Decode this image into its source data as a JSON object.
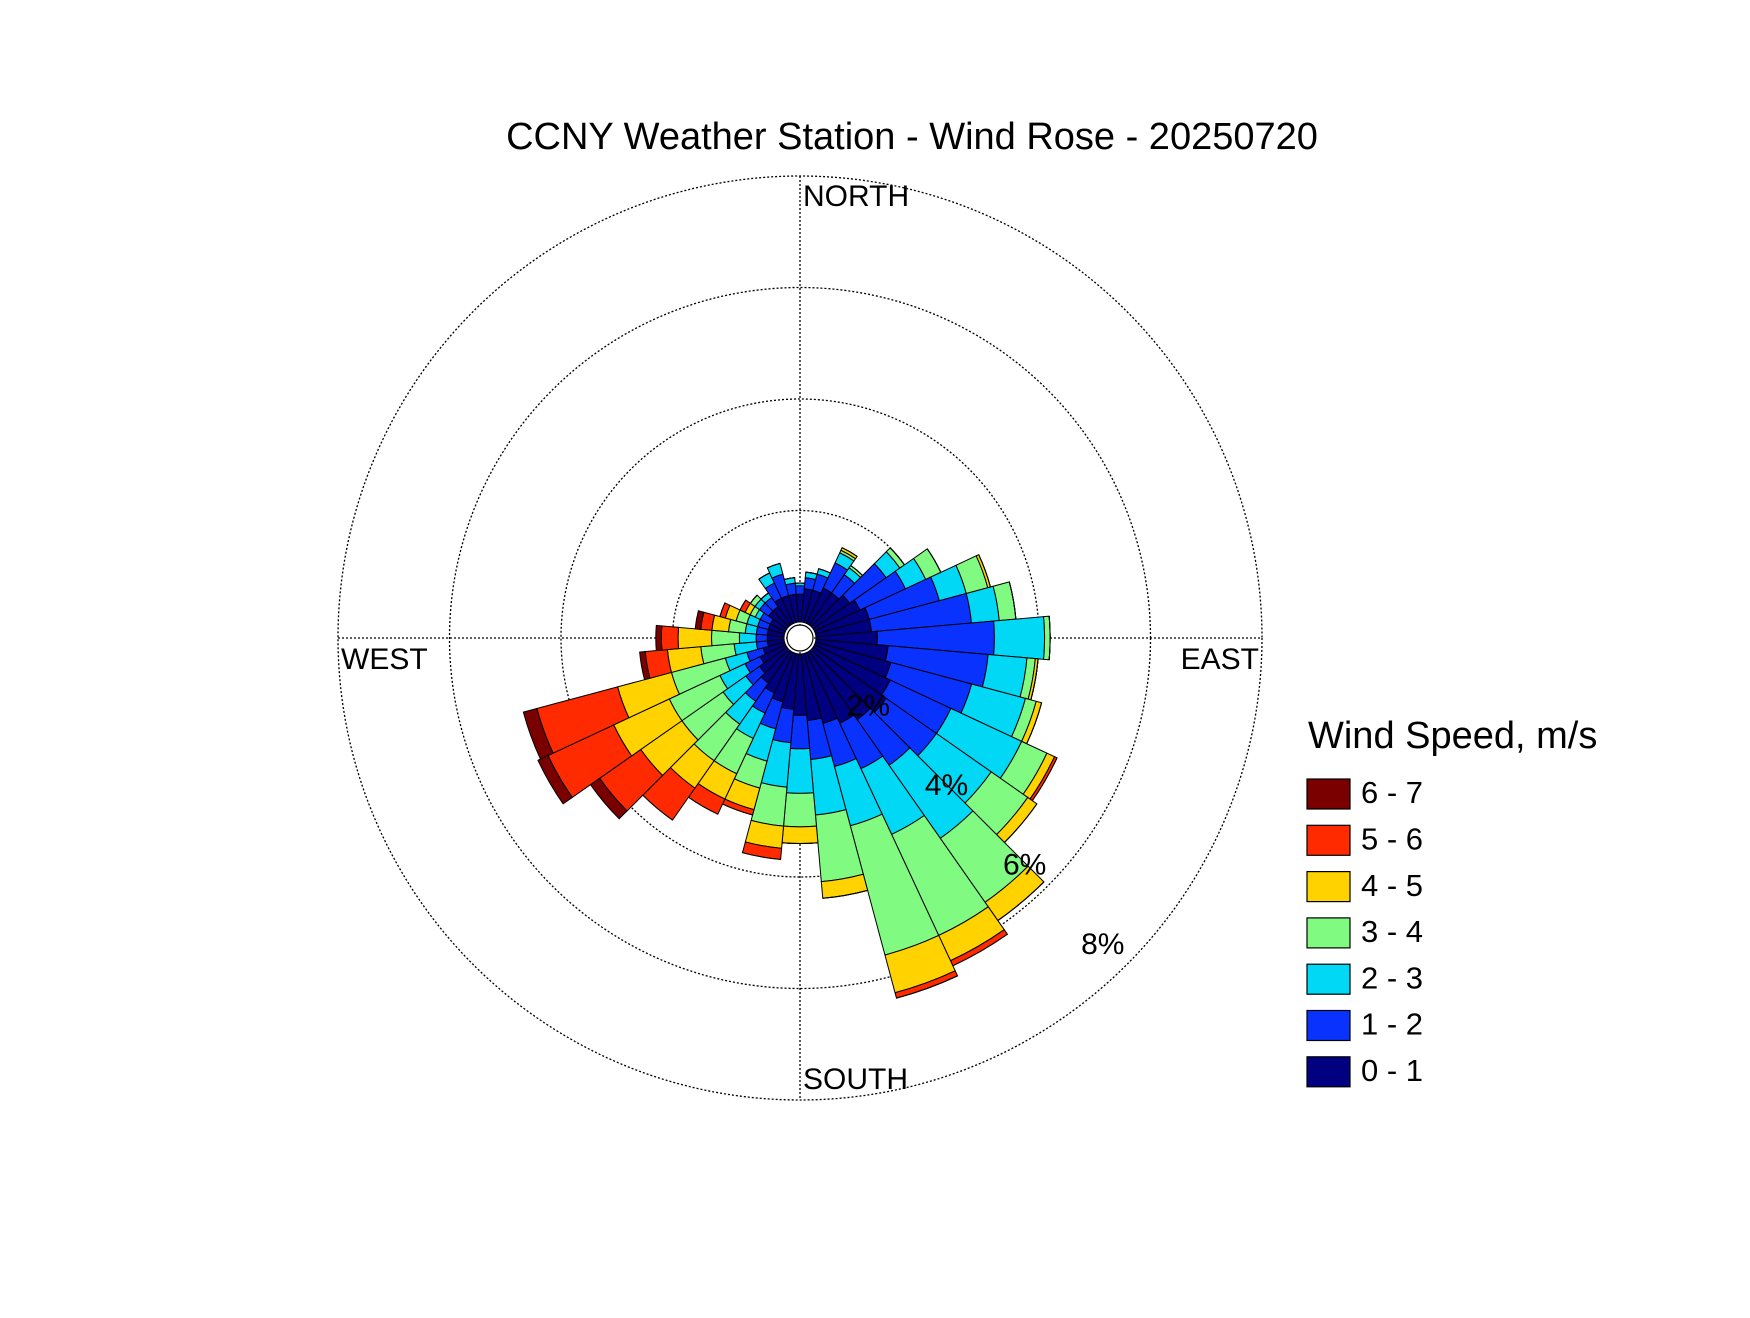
{
  "chart_data": {
    "type": "windrose",
    "title": "CCNY Weather Station - Wind Rose - 20250720",
    "legend_title": "Wind Speed, m/s",
    "direction_labels": [
      "NORTH",
      "EAST",
      "SOUTH",
      "WEST"
    ],
    "directions": [
      0,
      10,
      20,
      30,
      40,
      50,
      60,
      70,
      80,
      90,
      100,
      110,
      120,
      130,
      140,
      150,
      160,
      170,
      180,
      190,
      200,
      210,
      220,
      230,
      240,
      250,
      260,
      270,
      280,
      290,
      300,
      310,
      320,
      330,
      340,
      350
    ],
    "rlim": [
      0,
      8
    ],
    "rticks": [
      {
        "value": 2,
        "label": "2%"
      },
      {
        "value": 4,
        "label": "4%"
      },
      {
        "value": 6,
        "label": "6%"
      },
      {
        "value": 8,
        "label": "8%"
      }
    ],
    "grid": true,
    "series": [
      {
        "name": "0 - 1",
        "color": "#000080",
        "values": [
          0.5,
          0.6,
          0.6,
          0.7,
          0.7,
          0.8,
          0.9,
          1.0,
          1.0,
          1.1,
          1.3,
          1.4,
          1.5,
          1.6,
          1.5,
          1.4,
          1.3,
          1.2,
          1.1,
          1.0,
          0.9,
          0.8,
          0.7,
          0.6,
          0.5,
          0.4,
          0.3,
          0.3,
          0.3,
          0.3,
          0.3,
          0.4,
          0.4,
          0.5,
          0.5,
          0.5
        ]
      },
      {
        "name": "1 - 2",
        "color": "#0a32ff",
        "values": [
          0.15,
          0.2,
          0.3,
          0.5,
          0.4,
          0.8,
          0.9,
          1.3,
          1.8,
          2.1,
          1.8,
          1.5,
          1.2,
          1.1,
          1.0,
          0.9,
          0.8,
          0.7,
          0.6,
          0.6,
          0.5,
          0.4,
          0.4,
          0.3,
          0.3,
          0.3,
          0.2,
          0.2,
          0.2,
          0.2,
          0.2,
          0.2,
          0.2,
          0.3,
          0.4,
          0.2
        ]
      },
      {
        "name": "2 - 3",
        "color": "#00d8f5",
        "values": [
          0.05,
          0.1,
          0.1,
          0.2,
          0.15,
          0.3,
          0.4,
          0.5,
          0.5,
          0.9,
          0.7,
          1.0,
          1.4,
          1.2,
          1.6,
          1.3,
          1.1,
          1.0,
          0.8,
          0.8,
          0.6,
          0.5,
          0.5,
          0.5,
          0.5,
          0.4,
          0.4,
          0.3,
          0.2,
          0.2,
          0.1,
          0.1,
          0.1,
          0.2,
          0.2,
          0.1
        ]
      },
      {
        "name": "3 - 4",
        "color": "#80fa80",
        "values": [
          0,
          0,
          0,
          0.05,
          0.05,
          0.1,
          0.3,
          0.4,
          0.3,
          0.1,
          0.15,
          0.2,
          0.5,
          0.8,
          1.4,
          2.0,
          2.4,
          1.2,
          0.6,
          0.7,
          0.5,
          0.7,
          0.8,
          0.9,
          1.0,
          1.0,
          0.6,
          0.5,
          0.3,
          0.2,
          0.1,
          0.1,
          0,
          0,
          0,
          0
        ]
      },
      {
        "name": "4 - 5",
        "color": "#ffd200",
        "values": [
          0,
          0,
          0,
          0.05,
          0,
          0,
          0,
          0.05,
          0,
          0,
          0.05,
          0.1,
          0.15,
          0.2,
          0.4,
          0.5,
          0.7,
          0.3,
          0.3,
          0.4,
          0.4,
          0.5,
          0.6,
          0.9,
          1.1,
          1.0,
          0.6,
          0.6,
          0.3,
          0.2,
          0.1,
          0,
          0,
          0,
          0,
          0
        ]
      },
      {
        "name": "5 - 6",
        "color": "#ff2a00",
        "values": [
          0,
          0,
          0,
          0,
          0,
          0,
          0,
          0,
          0,
          0,
          0,
          0,
          0.05,
          0,
          0,
          0.1,
          0.1,
          0,
          0,
          0.2,
          0.1,
          0.3,
          0.7,
          0.9,
          1.3,
          1.5,
          0.4,
          0.3,
          0.2,
          0.1,
          0.1,
          0,
          0,
          0,
          0,
          0
        ]
      },
      {
        "name": "6 - 7",
        "color": "#7a0000",
        "values": [
          0,
          0,
          0,
          0,
          0,
          0,
          0,
          0,
          0,
          0,
          0,
          0,
          0,
          0,
          0,
          0,
          0,
          0,
          0,
          0,
          0,
          0,
          0,
          0.2,
          0.2,
          0.25,
          0.1,
          0.1,
          0.1,
          0,
          0,
          0,
          0,
          0,
          0,
          0
        ]
      }
    ]
  }
}
